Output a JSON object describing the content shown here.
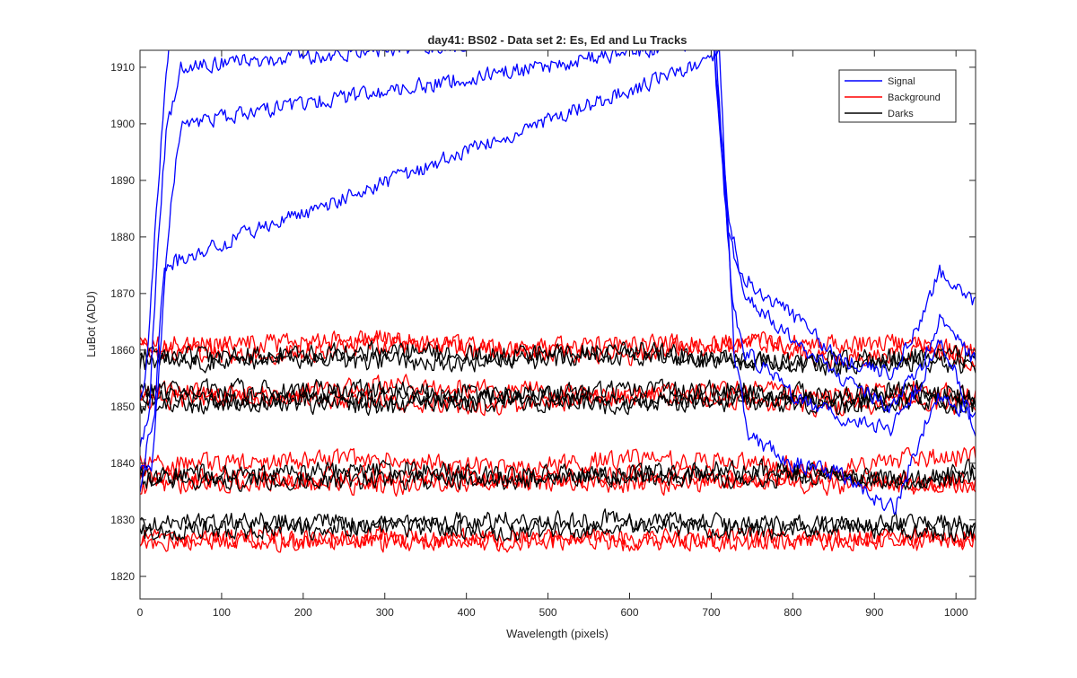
{
  "chart_data": {
    "type": "line",
    "title": "day41: BS02 - Data set 2: Es, Ed and Lu Tracks",
    "xlabel": "Wavelength (pixels)",
    "ylabel": "LuBot (ADU)",
    "xlim": [
      0,
      1024
    ],
    "ylim": [
      1816,
      1913
    ],
    "xticks": [
      0,
      100,
      200,
      300,
      400,
      500,
      600,
      700,
      800,
      900,
      1000
    ],
    "yticks": [
      1820,
      1830,
      1840,
      1850,
      1860,
      1870,
      1880,
      1890,
      1900,
      1910
    ],
    "grid": false,
    "legend_position": "top-right",
    "legend": [
      {
        "name": "Signal",
        "color": "#0000ff"
      },
      {
        "name": "Background",
        "color": "#ff0000"
      },
      {
        "name": "Darks",
        "color": "#000000"
      }
    ],
    "noise_seeds": [
      11,
      23,
      37,
      41,
      53,
      67,
      79,
      83,
      97,
      101,
      113,
      127,
      131,
      149,
      157,
      163,
      173,
      181,
      191,
      197,
      211,
      223,
      227,
      239,
      241,
      251
    ],
    "series": [
      {
        "group": "Signal",
        "color": "#0000ff",
        "noise": 0.8,
        "points": [
          [
            0,
            1850
          ],
          [
            10,
            1860
          ],
          [
            20,
            1885
          ],
          [
            30,
            1905
          ],
          [
            40,
            1920
          ],
          [
            700,
            1920
          ],
          [
            720,
            1880
          ],
          [
            740,
            1873
          ],
          [
            800,
            1866
          ],
          [
            860,
            1858
          ],
          [
            920,
            1856
          ],
          [
            960,
            1866
          ],
          [
            980,
            1874
          ],
          [
            1000,
            1872
          ],
          [
            1024,
            1868
          ]
        ]
      },
      {
        "group": "Signal",
        "color": "#0000ff",
        "noise": 0.8,
        "points": [
          [
            0,
            1842
          ],
          [
            12,
            1850
          ],
          [
            22,
            1880
          ],
          [
            32,
            1898
          ],
          [
            42,
            1905
          ],
          [
            50,
            1910
          ],
          [
            700,
            1918
          ],
          [
            720,
            1885
          ],
          [
            740,
            1870
          ],
          [
            800,
            1862
          ],
          [
            860,
            1855
          ],
          [
            920,
            1850
          ],
          [
            960,
            1858
          ],
          [
            980,
            1866
          ],
          [
            1000,
            1862
          ],
          [
            1024,
            1858
          ]
        ]
      },
      {
        "group": "Signal",
        "color": "#0000ff",
        "noise": 0.8,
        "points": [
          [
            0,
            1838
          ],
          [
            15,
            1840
          ],
          [
            25,
            1860
          ],
          [
            35,
            1882
          ],
          [
            50,
            1900
          ],
          [
            705,
            1915
          ],
          [
            725,
            1870
          ],
          [
            740,
            1860
          ],
          [
            800,
            1852
          ],
          [
            860,
            1848
          ],
          [
            920,
            1846
          ],
          [
            960,
            1855
          ],
          [
            980,
            1862
          ],
          [
            1000,
            1856
          ],
          [
            1024,
            1845
          ]
        ]
      },
      {
        "group": "Signal",
        "color": "#0000ff",
        "noise": 0.8,
        "points": [
          [
            0,
            1836
          ],
          [
            18,
            1850
          ],
          [
            30,
            1875
          ],
          [
            710,
            1912
          ],
          [
            728,
            1860
          ],
          [
            745,
            1845
          ],
          [
            800,
            1840
          ],
          [
            860,
            1838
          ],
          [
            900,
            1834
          ],
          [
            925,
            1832
          ],
          [
            960,
            1846
          ],
          [
            980,
            1852
          ],
          [
            1000,
            1850
          ],
          [
            1024,
            1848
          ]
        ]
      },
      {
        "group": "Background",
        "color": "#ff0000",
        "noise": 1.0,
        "points": [
          [
            0,
            1861
          ],
          [
            150,
            1861
          ],
          [
            300,
            1862
          ],
          [
            450,
            1860
          ],
          [
            600,
            1861
          ],
          [
            750,
            1861
          ],
          [
            850,
            1861
          ],
          [
            950,
            1861
          ],
          [
            1024,
            1860
          ]
        ]
      },
      {
        "group": "Background",
        "color": "#ff0000",
        "noise": 1.0,
        "points": [
          [
            0,
            1860
          ],
          [
            150,
            1859
          ],
          [
            300,
            1861
          ],
          [
            450,
            1860
          ],
          [
            600,
            1859
          ],
          [
            750,
            1862
          ],
          [
            850,
            1858
          ],
          [
            950,
            1860
          ],
          [
            1024,
            1858
          ]
        ]
      },
      {
        "group": "Background",
        "color": "#ff0000",
        "noise": 1.0,
        "points": [
          [
            0,
            1853
          ],
          [
            150,
            1852
          ],
          [
            300,
            1854
          ],
          [
            450,
            1853
          ],
          [
            600,
            1852
          ],
          [
            750,
            1853
          ],
          [
            850,
            1852
          ],
          [
            950,
            1853
          ],
          [
            1024,
            1852
          ]
        ]
      },
      {
        "group": "Background",
        "color": "#ff0000",
        "noise": 1.0,
        "points": [
          [
            0,
            1851
          ],
          [
            150,
            1852
          ],
          [
            300,
            1851
          ],
          [
            450,
            1850
          ],
          [
            600,
            1852
          ],
          [
            750,
            1851
          ],
          [
            850,
            1850
          ],
          [
            950,
            1851
          ],
          [
            1024,
            1850
          ]
        ]
      },
      {
        "group": "Background",
        "color": "#ff0000",
        "noise": 1.0,
        "points": [
          [
            0,
            1840
          ],
          [
            150,
            1840
          ],
          [
            300,
            1841
          ],
          [
            450,
            1839
          ],
          [
            600,
            1841
          ],
          [
            750,
            1840
          ],
          [
            850,
            1839
          ],
          [
            950,
            1841
          ],
          [
            1024,
            1841
          ]
        ]
      },
      {
        "group": "Background",
        "color": "#ff0000",
        "noise": 1.0,
        "points": [
          [
            0,
            1838
          ],
          [
            150,
            1837
          ],
          [
            300,
            1838
          ],
          [
            450,
            1837
          ],
          [
            600,
            1838
          ],
          [
            750,
            1837
          ],
          [
            850,
            1838
          ],
          [
            950,
            1836
          ],
          [
            1024,
            1837
          ]
        ]
      },
      {
        "group": "Background",
        "color": "#ff0000",
        "noise": 1.0,
        "points": [
          [
            0,
            1836
          ],
          [
            150,
            1837
          ],
          [
            300,
            1836
          ],
          [
            450,
            1837
          ],
          [
            600,
            1836
          ],
          [
            750,
            1837
          ],
          [
            850,
            1836
          ],
          [
            950,
            1837
          ],
          [
            1024,
            1836
          ]
        ]
      },
      {
        "group": "Background",
        "color": "#ff0000",
        "noise": 1.0,
        "points": [
          [
            0,
            1827
          ],
          [
            150,
            1826
          ],
          [
            300,
            1827
          ],
          [
            450,
            1826
          ],
          [
            600,
            1827
          ],
          [
            750,
            1826
          ],
          [
            850,
            1827
          ],
          [
            950,
            1826
          ],
          [
            1024,
            1827
          ]
        ]
      },
      {
        "group": "Background",
        "color": "#ff0000",
        "noise": 1.0,
        "points": [
          [
            0,
            1826
          ],
          [
            150,
            1827
          ],
          [
            300,
            1826
          ],
          [
            450,
            1827
          ],
          [
            600,
            1826
          ],
          [
            750,
            1827
          ],
          [
            850,
            1826
          ],
          [
            950,
            1827
          ],
          [
            1024,
            1826
          ]
        ]
      },
      {
        "group": "Darks",
        "color": "#000000",
        "noise": 1.0,
        "points": [
          [
            0,
            1859
          ],
          [
            150,
            1859
          ],
          [
            300,
            1860
          ],
          [
            450,
            1859
          ],
          [
            600,
            1860
          ],
          [
            750,
            1858
          ],
          [
            850,
            1858
          ],
          [
            950,
            1859
          ],
          [
            1024,
            1859
          ]
        ]
      },
      {
        "group": "Darks",
        "color": "#000000",
        "noise": 1.0,
        "points": [
          [
            0,
            1858
          ],
          [
            150,
            1858
          ],
          [
            300,
            1858
          ],
          [
            450,
            1858
          ],
          [
            600,
            1859
          ],
          [
            750,
            1858
          ],
          [
            850,
            1857
          ],
          [
            950,
            1858
          ],
          [
            1024,
            1857
          ]
        ]
      },
      {
        "group": "Darks",
        "color": "#000000",
        "noise": 1.0,
        "points": [
          [
            0,
            1853
          ],
          [
            150,
            1853
          ],
          [
            300,
            1853
          ],
          [
            450,
            1852
          ],
          [
            600,
            1853
          ],
          [
            750,
            1853
          ],
          [
            850,
            1852
          ],
          [
            950,
            1853
          ],
          [
            1024,
            1852
          ]
        ]
      },
      {
        "group": "Darks",
        "color": "#000000",
        "noise": 1.0,
        "points": [
          [
            0,
            1852
          ],
          [
            150,
            1851
          ],
          [
            300,
            1851
          ],
          [
            450,
            1852
          ],
          [
            600,
            1851
          ],
          [
            750,
            1852
          ],
          [
            850,
            1851
          ],
          [
            950,
            1852
          ],
          [
            1024,
            1851
          ]
        ]
      },
      {
        "group": "Darks",
        "color": "#000000",
        "noise": 1.0,
        "points": [
          [
            0,
            1850
          ],
          [
            150,
            1851
          ],
          [
            300,
            1850
          ],
          [
            450,
            1851
          ],
          [
            600,
            1850
          ],
          [
            750,
            1851
          ],
          [
            850,
            1850
          ],
          [
            950,
            1851
          ],
          [
            1024,
            1850
          ]
        ]
      },
      {
        "group": "Darks",
        "color": "#000000",
        "noise": 1.0,
        "points": [
          [
            0,
            1838
          ],
          [
            150,
            1838
          ],
          [
            300,
            1839
          ],
          [
            450,
            1838
          ],
          [
            600,
            1838
          ],
          [
            750,
            1839
          ],
          [
            850,
            1838
          ],
          [
            950,
            1837
          ],
          [
            1024,
            1839
          ]
        ]
      },
      {
        "group": "Darks",
        "color": "#000000",
        "noise": 1.0,
        "points": [
          [
            0,
            1837
          ],
          [
            150,
            1837
          ],
          [
            300,
            1837
          ],
          [
            450,
            1837
          ],
          [
            600,
            1838
          ],
          [
            750,
            1837
          ],
          [
            850,
            1838
          ],
          [
            950,
            1837
          ],
          [
            1024,
            1838
          ]
        ]
      },
      {
        "group": "Darks",
        "color": "#000000",
        "noise": 1.0,
        "points": [
          [
            0,
            1829
          ],
          [
            150,
            1830
          ],
          [
            300,
            1829
          ],
          [
            450,
            1830
          ],
          [
            600,
            1830
          ],
          [
            750,
            1829
          ],
          [
            850,
            1829
          ],
          [
            950,
            1830
          ],
          [
            1024,
            1829
          ]
        ]
      },
      {
        "group": "Darks",
        "color": "#000000",
        "noise": 1.0,
        "points": [
          [
            0,
            1828
          ],
          [
            150,
            1828
          ],
          [
            300,
            1829
          ],
          [
            450,
            1828
          ],
          [
            600,
            1829
          ],
          [
            750,
            1828
          ],
          [
            850,
            1829
          ],
          [
            950,
            1828
          ],
          [
            1024,
            1828
          ]
        ]
      }
    ]
  }
}
